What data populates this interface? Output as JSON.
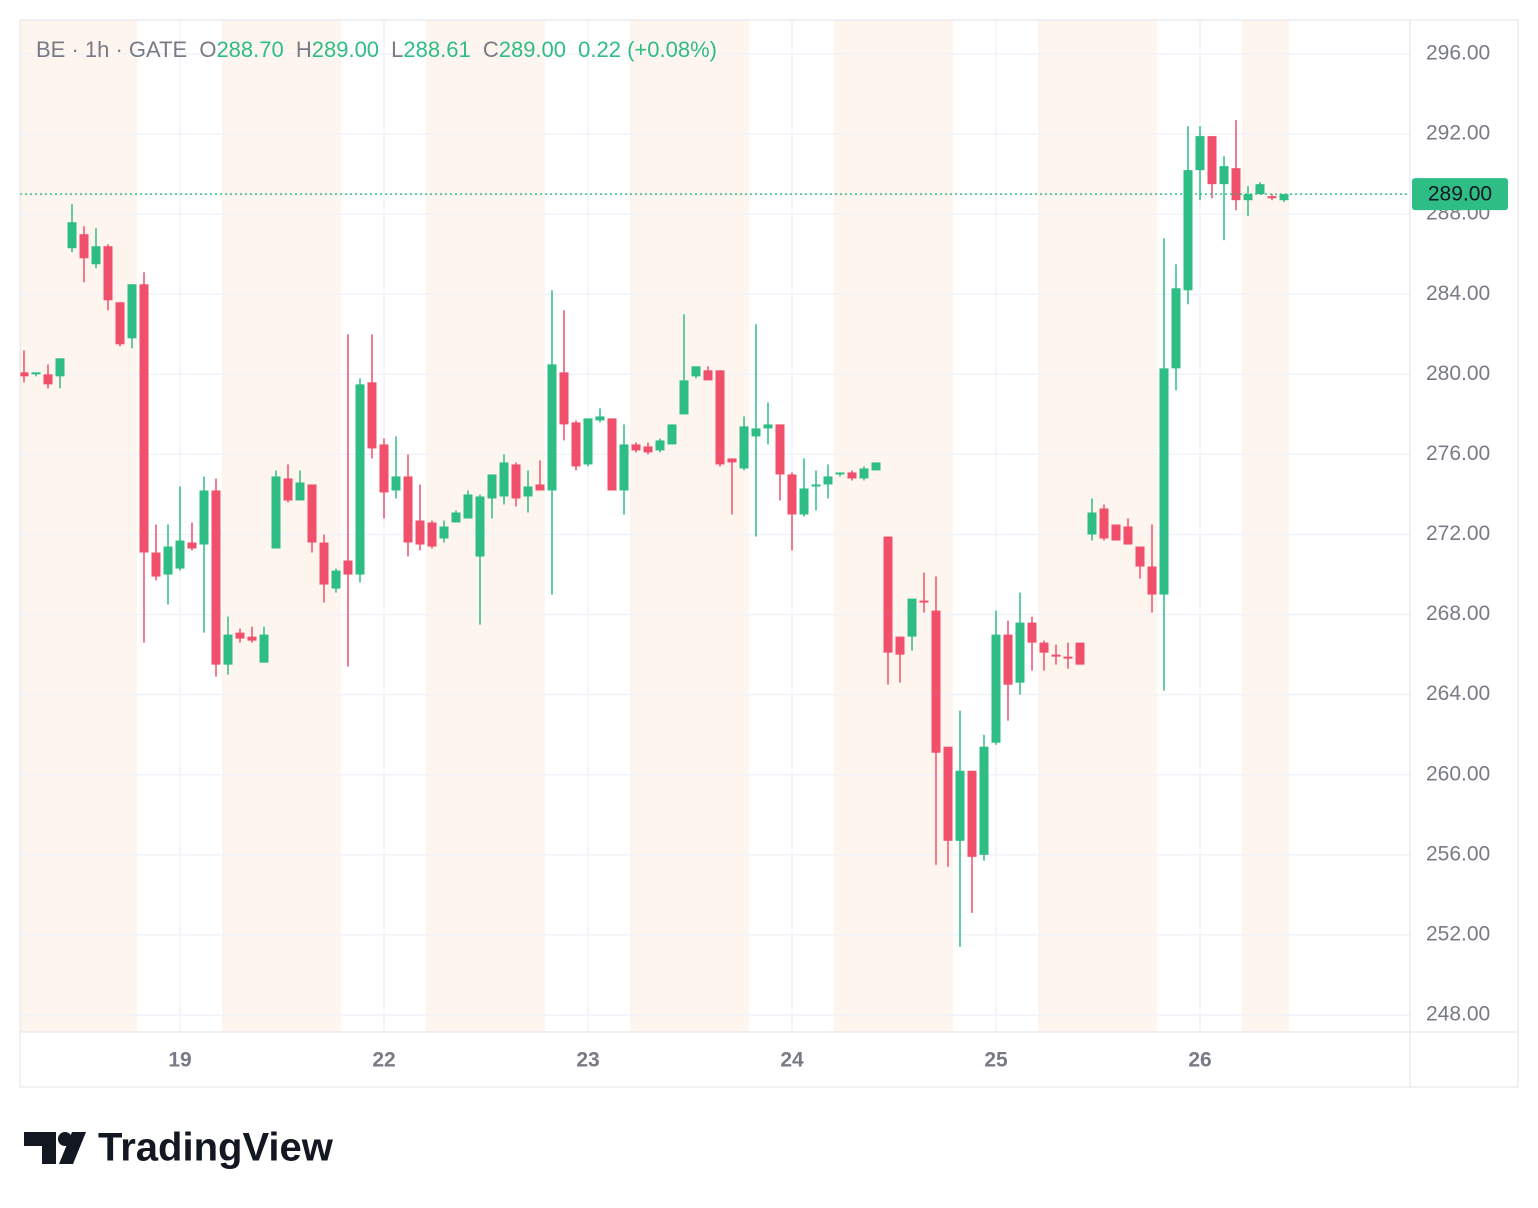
{
  "chart_data": {
    "type": "candlestick",
    "header": {
      "symbol": "BE · 1h · GATE",
      "open_label": "O",
      "open": "288.70",
      "high_label": "H",
      "high": "289.00",
      "low_label": "L",
      "low": "288.61",
      "close_label": "C",
      "close": "289.00",
      "change": "0.22 (+0.08%)"
    },
    "x": [
      0,
      1,
      2,
      3,
      4,
      5,
      6,
      7,
      8,
      9,
      10,
      11,
      12,
      13,
      14,
      15,
      16,
      17,
      18,
      19,
      20,
      21,
      22,
      23,
      24,
      25,
      26,
      27,
      28,
      29,
      30,
      31,
      32,
      33,
      34,
      35,
      36,
      37,
      38,
      39,
      40,
      41,
      42,
      43,
      44,
      45,
      46,
      47,
      48,
      49,
      50,
      51,
      52,
      53,
      54,
      55,
      56,
      57,
      58,
      59,
      60,
      61,
      62,
      63,
      64,
      65,
      66,
      67,
      68,
      69,
      70,
      71,
      72,
      73,
      74,
      75,
      76,
      77,
      78,
      79,
      80,
      81,
      82,
      83,
      84,
      85,
      86,
      87,
      88,
      89,
      90,
      91,
      92,
      93,
      94,
      95,
      96,
      97,
      98,
      99,
      100,
      101,
      102,
      103,
      104,
      105
    ],
    "open": [
      280.1,
      280.0,
      280.0,
      279.9,
      286.3,
      287.0,
      285.5,
      286.4,
      283.6,
      281.8,
      284.5,
      271.1,
      270.0,
      270.3,
      271.6,
      271.5,
      274.2,
      265.5,
      267.1,
      266.9,
      265.6,
      271.3,
      274.8,
      273.7,
      274.5,
      271.6,
      269.3,
      270.7,
      270.0,
      279.6,
      276.5,
      274.2,
      274.9,
      272.7,
      272.6,
      271.8,
      272.6,
      272.8,
      270.9,
      273.8,
      273.9,
      275.5,
      273.9,
      274.5,
      274.2,
      280.1,
      277.6,
      275.5,
      277.7,
      277.8,
      274.2,
      276.5,
      276.4,
      276.2,
      276.5,
      278.0,
      279.9,
      280.2,
      280.2,
      275.8,
      275.3,
      276.9,
      277.3,
      277.5,
      275.0,
      273.0,
      274.4,
      274.5,
      275.0,
      275.1,
      274.8,
      275.2,
      271.9,
      266.9,
      266.9,
      268.7,
      268.2,
      261.4,
      256.7,
      260.2,
      256.0,
      261.6,
      267.0,
      264.6,
      267.6,
      266.6,
      266.0,
      265.9,
      266.6,
      272.0,
      273.3,
      272.5,
      272.4,
      271.4,
      270.4,
      269.0,
      280.3,
      284.2,
      290.2,
      291.9,
      289.5,
      290.3,
      288.7,
      289.0,
      288.9,
      288.7
    ],
    "high": [
      281.2,
      280.1,
      280.5,
      280.8,
      288.5,
      287.4,
      287.3,
      286.5,
      283.6,
      284.5,
      285.1,
      272.5,
      272.5,
      274.4,
      272.6,
      274.9,
      274.8,
      267.9,
      267.3,
      267.4,
      267.4,
      275.2,
      275.5,
      275.2,
      274.5,
      272.0,
      270.3,
      282.0,
      279.8,
      282.0,
      276.8,
      276.9,
      276.0,
      274.5,
      272.7,
      272.7,
      273.2,
      274.2,
      274.0,
      275.0,
      276.0,
      275.6,
      275.2,
      275.7,
      284.2,
      283.2,
      277.7,
      277.8,
      278.3,
      277.8,
      277.5,
      276.6,
      276.6,
      276.8,
      277.5,
      283.0,
      280.4,
      280.4,
      280.2,
      275.8,
      277.9,
      282.5,
      278.6,
      277.5,
      275.1,
      275.8,
      275.2,
      275.5,
      275.1,
      275.2,
      275.4,
      275.6,
      271.9,
      266.9,
      268.8,
      270.1,
      269.9,
      261.4,
      263.2,
      260.2,
      262.0,
      268.2,
      267.7,
      269.1,
      267.9,
      266.7,
      266.5,
      266.6,
      266.6,
      273.8,
      273.5,
      272.5,
      272.8,
      271.4,
      272.5,
      286.8,
      285.5,
      292.4,
      292.4,
      291.9,
      290.9,
      292.7,
      289.4,
      289.6,
      289.0,
      289.0
    ],
    "low": [
      279.6,
      279.9,
      279.3,
      279.3,
      286.1,
      284.6,
      285.3,
      283.2,
      281.4,
      281.3,
      266.6,
      269.7,
      268.5,
      270.2,
      271.2,
      267.1,
      264.9,
      265.0,
      266.6,
      266.6,
      265.6,
      271.3,
      273.6,
      273.7,
      271.1,
      268.6,
      269.1,
      265.4,
      269.6,
      275.8,
      272.8,
      273.8,
      270.9,
      271.2,
      271.3,
      271.6,
      272.6,
      272.8,
      267.5,
      272.8,
      273.5,
      273.4,
      273.1,
      274.2,
      269.0,
      276.7,
      275.2,
      275.4,
      277.6,
      274.2,
      273.0,
      276.1,
      276.0,
      276.1,
      276.5,
      278.0,
      279.8,
      279.7,
      275.4,
      273.0,
      275.2,
      271.9,
      276.5,
      273.7,
      271.2,
      272.9,
      273.2,
      273.8,
      274.9,
      274.7,
      274.7,
      275.2,
      264.5,
      264.6,
      266.2,
      268.1,
      255.5,
      255.4,
      251.4,
      253.1,
      255.7,
      261.5,
      262.7,
      264.0,
      265.2,
      265.2,
      265.5,
      265.3,
      265.5,
      271.7,
      271.7,
      271.7,
      271.5,
      269.8,
      268.1,
      264.2,
      279.2,
      283.5,
      288.7,
      288.8,
      286.7,
      288.2,
      287.9,
      289.0,
      288.7,
      288.61
    ],
    "close": [
      279.9,
      280.1,
      279.5,
      280.8,
      287.6,
      285.8,
      286.4,
      283.7,
      281.5,
      284.5,
      271.1,
      269.9,
      271.4,
      271.7,
      271.3,
      274.2,
      265.5,
      267.0,
      266.8,
      266.7,
      267.0,
      274.9,
      273.7,
      274.6,
      271.6,
      269.5,
      270.2,
      270.0,
      279.5,
      276.3,
      274.1,
      274.9,
      271.6,
      271.5,
      271.4,
      272.4,
      273.1,
      274.0,
      273.9,
      275.0,
      275.6,
      273.8,
      274.4,
      274.2,
      280.5,
      277.5,
      275.4,
      277.8,
      277.9,
      274.2,
      276.5,
      276.2,
      276.1,
      276.7,
      277.5,
      279.7,
      280.4,
      279.7,
      275.5,
      275.6,
      277.4,
      277.3,
      277.5,
      275.0,
      273.0,
      274.3,
      274.5,
      274.9,
      275.1,
      274.8,
      275.3,
      275.6,
      266.1,
      266.0,
      268.8,
      268.6,
      261.1,
      256.7,
      260.2,
      255.9,
      261.4,
      267.0,
      264.5,
      267.6,
      266.6,
      266.1,
      265.9,
      265.8,
      265.5,
      273.1,
      271.8,
      271.7,
      271.5,
      270.4,
      269.0,
      280.3,
      284.3,
      290.2,
      291.9,
      289.5,
      290.4,
      288.7,
      289.0,
      289.5,
      288.8,
      289.0
    ],
    "up_color": "#2ebd85",
    "down_color": "#f0506b",
    "xlim": [
      -0.333,
      115.5
    ],
    "xticks": [
      {
        "value": 13,
        "label": "19"
      },
      {
        "value": 30,
        "label": "22"
      },
      {
        "value": 47,
        "label": "23"
      },
      {
        "value": 64,
        "label": "24"
      },
      {
        "value": 81,
        "label": "25"
      },
      {
        "value": 98,
        "label": "26"
      }
    ],
    "ylim": [
      247.15,
      297.7
    ],
    "yticks": [
      {
        "value": 248,
        "label": "248.00"
      },
      {
        "value": 252,
        "label": "252.00"
      },
      {
        "value": 256,
        "label": "256.00"
      },
      {
        "value": 260,
        "label": "260.00"
      },
      {
        "value": 264,
        "label": "264.00"
      },
      {
        "value": 268,
        "label": "268.00"
      },
      {
        "value": 272,
        "label": "272.00"
      },
      {
        "value": 276,
        "label": "276.00"
      },
      {
        "value": 280,
        "label": "280.00"
      },
      {
        "value": 284,
        "label": "284.00"
      },
      {
        "value": 288,
        "label": "288.00"
      },
      {
        "value": 292,
        "label": "292.00"
      },
      {
        "value": 296,
        "label": "296.00"
      }
    ],
    "grid": true,
    "last_price": {
      "value": 289,
      "label": "289.00"
    }
  },
  "footer": {
    "brand": "TradingView"
  }
}
